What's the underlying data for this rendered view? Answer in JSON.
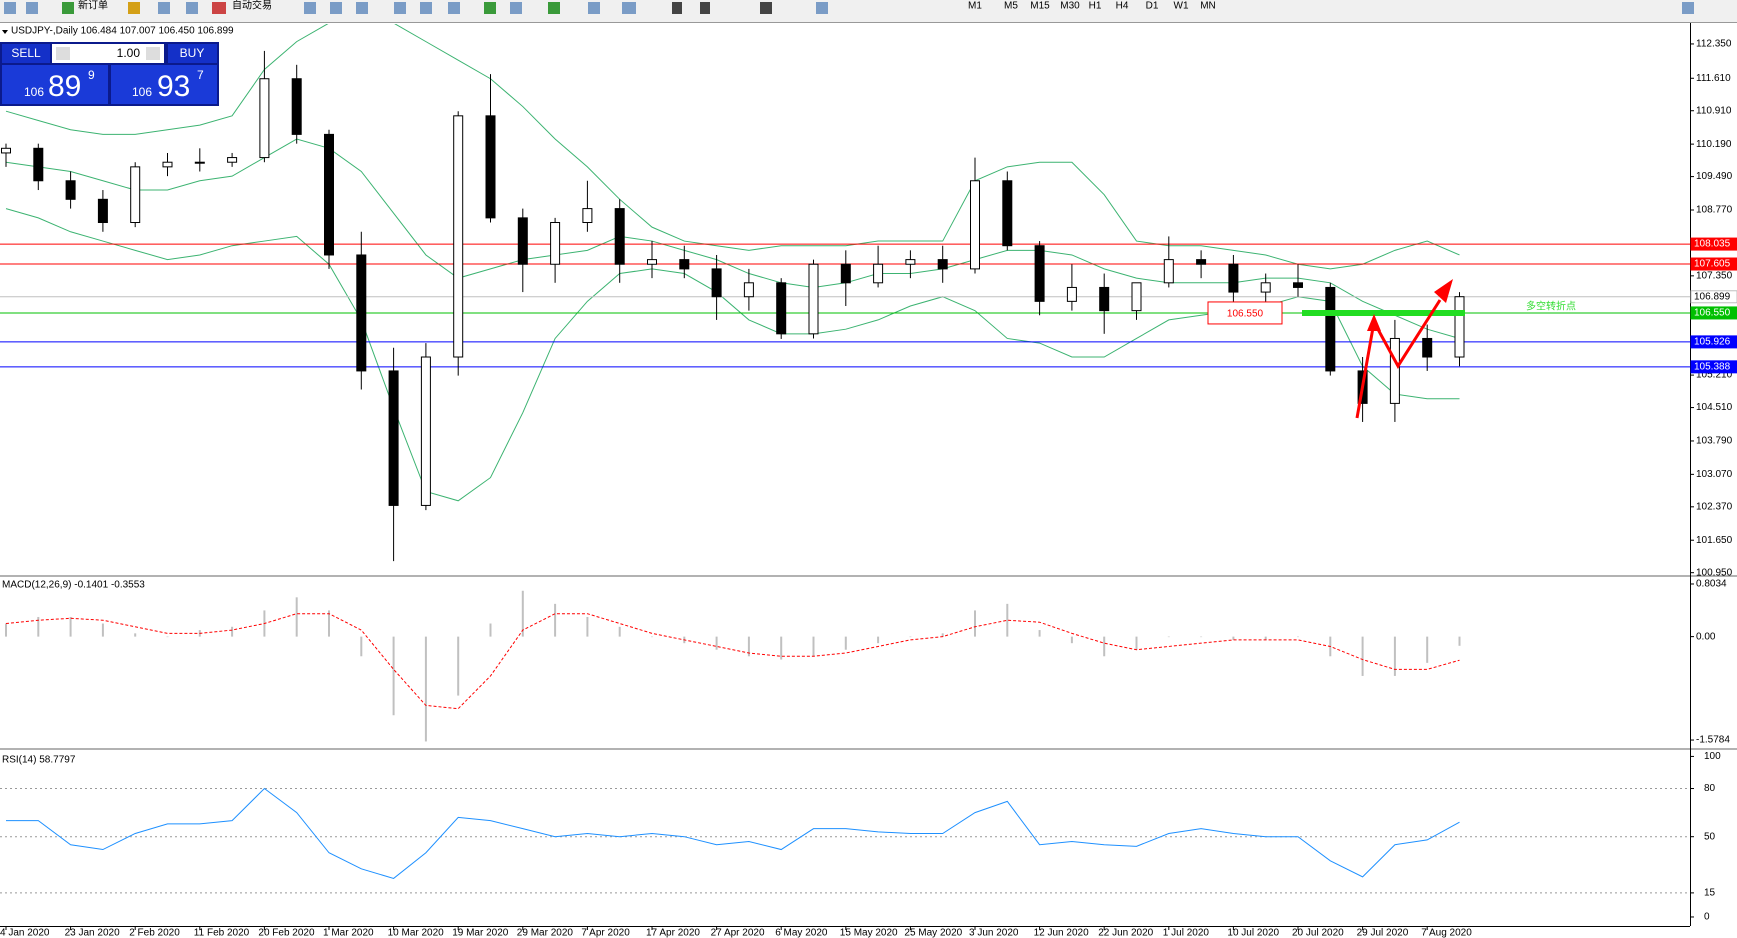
{
  "toolbar": {
    "new_order": "新订单",
    "auto_trading": "自动交易",
    "timeframes": [
      "M1",
      "M5",
      "M15",
      "M30",
      "H1",
      "H4",
      "D1",
      "W1",
      "MN"
    ]
  },
  "trade_panel": {
    "sell": "SELL",
    "lots": "1.00",
    "buy": "BUY",
    "sell_price": {
      "big_figure": "106",
      "pips": "89",
      "point": "9"
    },
    "buy_price": {
      "big_figure": "106",
      "pips": "93",
      "point": "7"
    }
  },
  "chart_data": [
    {
      "type": "candlestick",
      "title": "USDJPY-,Daily 106.484 107.007 106.450 106.899",
      "categories": [
        "4 Jan 2020",
        null,
        "23 Jan 2020",
        null,
        "2 Feb 2020",
        null,
        "11 Feb 2020",
        null,
        "20 Feb 2020",
        null,
        "1 Mar 2020",
        null,
        "10 Mar 2020",
        null,
        "19 Mar 2020",
        null,
        "29 Mar 2020",
        null,
        "7 Apr 2020",
        null,
        "17 Apr 2020",
        null,
        "27 Apr 2020",
        null,
        "6 May 2020",
        null,
        "15 May 2020",
        null,
        "25 May 2020",
        null,
        "3 Jun 2020",
        null,
        "12 Jun 2020",
        null,
        "22 Jun 2020",
        null,
        "1 Jul 2020",
        null,
        "10 Jul 2020",
        null,
        "20 Jul 2020",
        null,
        "29 Jul 2020",
        null,
        "7 Aug 2020",
        null
      ],
      "open": [
        110.0,
        110.1,
        109.4,
        109.0,
        108.5,
        109.7,
        109.8,
        109.8,
        109.9,
        111.6,
        110.4,
        107.8,
        105.3,
        102.4,
        105.6,
        110.8,
        108.6,
        107.6,
        108.5,
        108.8,
        107.6,
        107.7,
        107.5,
        106.9,
        107.2,
        106.1,
        107.6,
        107.2,
        107.6,
        107.7,
        107.5,
        109.4,
        108.0,
        106.8,
        107.1,
        106.6,
        107.2,
        107.7,
        107.6,
        107.0,
        107.2,
        107.1,
        105.3,
        104.6,
        106.0,
        105.6
      ],
      "high": [
        110.2,
        110.2,
        109.6,
        109.2,
        109.8,
        110.0,
        110.1,
        110.0,
        112.2,
        111.9,
        110.5,
        108.3,
        105.8,
        105.9,
        110.9,
        111.7,
        108.8,
        108.6,
        109.4,
        109.0,
        108.1,
        108.0,
        107.8,
        107.5,
        107.3,
        107.7,
        107.9,
        108.0,
        107.9,
        108.0,
        109.9,
        109.6,
        108.1,
        107.6,
        107.4,
        107.2,
        108.2,
        107.9,
        107.8,
        107.4,
        107.6,
        107.2,
        105.6,
        106.4,
        106.3,
        107.0
      ],
      "low": [
        109.7,
        109.2,
        108.8,
        108.3,
        108.4,
        109.5,
        109.6,
        109.7,
        109.8,
        110.2,
        107.5,
        104.9,
        101.2,
        102.3,
        105.2,
        108.5,
        107.0,
        107.2,
        108.3,
        107.2,
        107.3,
        107.3,
        106.4,
        106.6,
        105.99,
        106.0,
        106.7,
        107.1,
        107.3,
        107.2,
        107.4,
        107.9,
        106.5,
        106.6,
        106.1,
        106.4,
        107.1,
        107.3,
        106.6,
        106.7,
        106.9,
        105.2,
        104.2,
        104.2,
        105.3,
        105.4
      ],
      "close": [
        110.1,
        109.4,
        109.0,
        108.5,
        109.7,
        109.8,
        109.8,
        109.9,
        111.6,
        110.4,
        107.8,
        105.3,
        102.4,
        105.6,
        110.8,
        108.6,
        107.6,
        108.5,
        108.8,
        107.6,
        107.7,
        107.5,
        106.9,
        107.2,
        106.1,
        107.6,
        107.2,
        107.6,
        107.7,
        107.5,
        109.4,
        108.0,
        106.8,
        107.1,
        106.6,
        107.2,
        107.7,
        107.6,
        107.0,
        107.2,
        107.1,
        105.3,
        104.6,
        106.0,
        105.6,
        106.9
      ],
      "color_up": "#ffffff",
      "color_down": "#000000",
      "bands": {
        "color": "#3cb371",
        "upper": [
          110.9,
          110.7,
          110.5,
          110.4,
          110.4,
          110.5,
          110.6,
          110.8,
          111.8,
          112.4,
          112.8,
          112.8,
          112.8,
          112.4,
          112.0,
          111.6,
          111.0,
          110.3,
          109.7,
          109.0,
          108.4,
          108.1,
          108.0,
          107.9,
          108.0,
          108.0,
          108.0,
          108.1,
          108.1,
          108.1,
          109.4,
          109.7,
          109.8,
          109.8,
          109.1,
          108.1,
          108.0,
          108.0,
          107.9,
          107.8,
          107.6,
          107.5,
          107.6,
          107.9,
          108.1,
          107.8
        ],
        "middle": [
          109.8,
          109.7,
          109.6,
          109.4,
          109.2,
          109.2,
          109.4,
          109.5,
          109.9,
          110.3,
          110.1,
          109.6,
          108.7,
          107.8,
          107.3,
          107.5,
          107.7,
          107.8,
          107.9,
          108.2,
          108.1,
          107.9,
          107.7,
          107.4,
          107.2,
          107.1,
          107.2,
          107.4,
          107.4,
          107.5,
          107.7,
          107.9,
          107.9,
          107.8,
          107.5,
          107.3,
          107.2,
          107.2,
          107.2,
          107.3,
          107.3,
          107.2,
          106.8,
          106.5,
          106.2,
          106.0
        ],
        "lower": [
          108.8,
          108.6,
          108.3,
          108.1,
          107.9,
          107.7,
          107.8,
          108.0,
          108.1,
          108.2,
          107.6,
          106.4,
          104.5,
          102.7,
          102.5,
          103.0,
          104.4,
          106.0,
          106.8,
          107.4,
          107.5,
          107.4,
          107.0,
          106.4,
          106.1,
          106.1,
          106.2,
          106.4,
          106.7,
          106.9,
          106.6,
          106.0,
          105.9,
          105.6,
          105.6,
          106.0,
          106.4,
          106.5,
          106.6,
          106.7,
          106.9,
          106.8,
          105.4,
          104.8,
          104.7,
          104.7
        ]
      },
      "levels": [
        {
          "value": 108.035,
          "color": "#ff0000"
        },
        {
          "value": 107.605,
          "color": "#ff0000"
        },
        {
          "value": 106.899,
          "color": "#c0c0c0"
        },
        {
          "value": 106.55,
          "label": "106.550",
          "color": "#00c000"
        },
        {
          "value": 105.926,
          "color": "#0000ff"
        },
        {
          "value": 105.388,
          "color": "#0000ff"
        }
      ],
      "annotations": {
        "level_label": "106.550",
        "text": "多空转折点",
        "text_color": "#33dd33",
        "arrow_color": "#ff0000"
      },
      "ylim": [
        100.9,
        112.78
      ],
      "yticks": [
        {
          "value": 112.35,
          "label": "112.350"
        },
        {
          "value": 111.61,
          "label": "111.610"
        },
        {
          "value": 110.91,
          "label": "110.910"
        },
        {
          "value": 110.19,
          "label": "110.190"
        },
        {
          "value": 109.49,
          "label": "109.490"
        },
        {
          "value": 108.77,
          "label": "108.770"
        },
        {
          "value": 107.35,
          "label": "107.350"
        },
        {
          "value": 105.21,
          "label": "105.210"
        },
        {
          "value": 104.51,
          "label": "104.510"
        },
        {
          "value": 103.79,
          "label": "103.790"
        },
        {
          "value": 103.07,
          "label": "103.070"
        },
        {
          "value": 102.37,
          "label": "102.370"
        },
        {
          "value": 101.65,
          "label": "101.650"
        },
        {
          "value": 100.95,
          "label": "100.950"
        }
      ]
    },
    {
      "type": "macd",
      "title": "MACD(12,26,9) -0.1401 -0.3553",
      "values": [
        0.2,
        0.3,
        0.3,
        0.2,
        0.05,
        0.0,
        0.1,
        0.15,
        0.4,
        0.6,
        0.4,
        -0.3,
        -1.2,
        -1.6,
        -0.9,
        0.2,
        0.7,
        0.5,
        0.3,
        0.15,
        0.0,
        -0.1,
        -0.2,
        -0.3,
        -0.35,
        -0.3,
        -0.2,
        -0.1,
        0.0,
        0.05,
        0.4,
        0.5,
        0.1,
        -0.1,
        -0.3,
        -0.2,
        0.0,
        0.0,
        -0.05,
        -0.05,
        0.0,
        -0.3,
        -0.6,
        -0.6,
        -0.4,
        -0.14
      ],
      "signal": [
        0.2,
        0.25,
        0.28,
        0.25,
        0.15,
        0.05,
        0.05,
        0.1,
        0.2,
        0.35,
        0.35,
        0.1,
        -0.5,
        -1.05,
        -1.1,
        -0.6,
        0.1,
        0.35,
        0.35,
        0.2,
        0.05,
        -0.05,
        -0.15,
        -0.25,
        -0.3,
        -0.3,
        -0.25,
        -0.15,
        -0.05,
        0.0,
        0.15,
        0.25,
        0.22,
        0.05,
        -0.1,
        -0.2,
        -0.15,
        -0.1,
        -0.05,
        -0.05,
        -0.05,
        -0.15,
        -0.35,
        -0.5,
        -0.5,
        -0.36
      ],
      "color": "#c0c0c0",
      "signal_color": "#ff0000",
      "ylim": [
        -1.7,
        0.91
      ],
      "yticks": [
        0.8034,
        {
          "value": 0,
          "label": "0.00"
        },
        -1.5784
      ]
    },
    {
      "type": "line",
      "title": "RSI(14) 58.7797",
      "values": [
        60,
        60,
        45,
        42,
        52,
        58,
        58,
        60,
        80,
        65,
        40,
        30,
        24,
        40,
        62,
        60,
        55,
        50,
        52,
        50,
        52,
        50,
        45,
        47,
        42,
        55,
        55,
        53,
        52,
        52,
        65,
        72,
        45,
        47,
        45,
        44,
        52,
        55,
        52,
        50,
        50,
        35,
        25,
        45,
        48,
        59
      ],
      "color": "#1e90ff",
      "ylim": [
        -5,
        104
      ],
      "yticks": [
        100,
        80,
        50,
        15,
        0
      ],
      "guide_levels": [
        80,
        50,
        15
      ]
    }
  ]
}
